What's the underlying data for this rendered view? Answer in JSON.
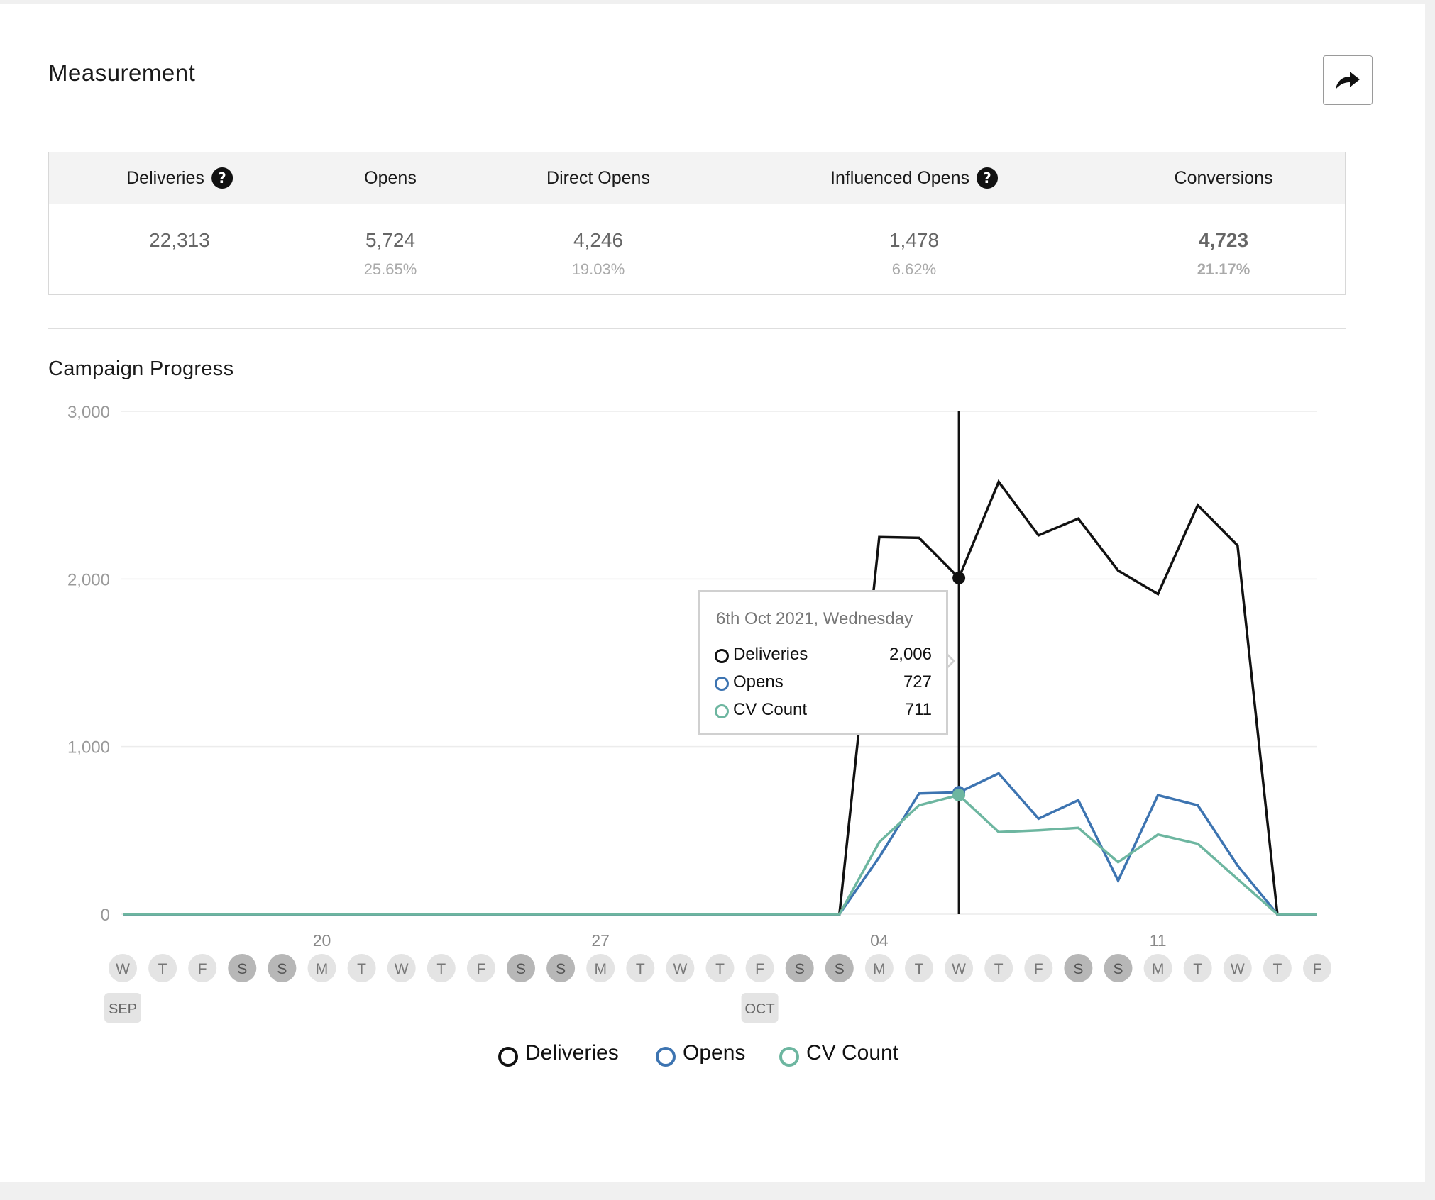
{
  "section_title": "Measurement",
  "share_icon": "share-arrow-icon",
  "metrics": [
    {
      "label": "Deliveries",
      "help": true,
      "value": "22,313",
      "percent": ""
    },
    {
      "label": "Opens",
      "help": false,
      "value": "5,724",
      "percent": "25.65%"
    },
    {
      "label": "Direct Opens",
      "help": false,
      "value": "4,246",
      "percent": "19.03%"
    },
    {
      "label": "Influenced Opens",
      "help": true,
      "value": "1,478",
      "percent": "6.62%"
    },
    {
      "label": "Conversions",
      "help": false,
      "value": "4,723",
      "percent": "21.17%",
      "bold": true
    }
  ],
  "help_glyph": "?",
  "chart_title": "Campaign Progress",
  "tooltip": {
    "date": "6th Oct 2021, Wednesday",
    "rows": [
      {
        "label": "Deliveries",
        "value": "2,006"
      },
      {
        "label": "Opens",
        "value": "727"
      },
      {
        "label": "CV Count",
        "value": "711"
      }
    ]
  },
  "legend": [
    "Deliveries",
    "Opens",
    "CV Count"
  ],
  "colors": {
    "deliveries": "#111111",
    "opens": "#3d74b1",
    "cv_count": "#6db6a0",
    "weekend_chip": "#b7b7b7",
    "weekday_chip": "#e4e4e4"
  },
  "chart_data": {
    "type": "line",
    "title": "Campaign Progress",
    "ylim": [
      0,
      3000
    ],
    "y_ticks": [
      "0",
      "1,000",
      "2,000",
      "3,000"
    ],
    "y_tick_values": [
      0,
      1000,
      2000,
      3000
    ],
    "week_labels": [
      {
        "day_index": 5,
        "label": "20"
      },
      {
        "day_index": 12,
        "label": "27"
      },
      {
        "day_index": 19,
        "label": "04"
      },
      {
        "day_index": 26,
        "label": "11"
      }
    ],
    "month_labels": [
      {
        "day_index": 0,
        "label": "SEP"
      },
      {
        "day_index": 16,
        "label": "OCT"
      }
    ],
    "day_letters": [
      "W",
      "T",
      "F",
      "S",
      "S",
      "M",
      "T",
      "W",
      "T",
      "F",
      "S",
      "S",
      "M",
      "T",
      "W",
      "T",
      "F",
      "S",
      "S",
      "M",
      "T",
      "W",
      "T",
      "F",
      "S",
      "S",
      "M",
      "T",
      "W",
      "T",
      "F"
    ],
    "weekend": [
      false,
      false,
      false,
      true,
      true,
      false,
      false,
      false,
      false,
      false,
      true,
      true,
      false,
      false,
      false,
      false,
      false,
      true,
      true,
      false,
      false,
      false,
      false,
      false,
      true,
      true,
      false,
      false,
      false,
      false,
      false
    ],
    "highlight_index": 21,
    "series": [
      {
        "name": "Deliveries",
        "color": "#111111",
        "values": [
          0,
          0,
          0,
          0,
          0,
          0,
          0,
          0,
          0,
          0,
          0,
          0,
          0,
          0,
          0,
          0,
          0,
          0,
          0,
          2250,
          2245,
          2006,
          2580,
          2260,
          2360,
          2050,
          1910,
          2440,
          2200,
          0,
          0
        ]
      },
      {
        "name": "Opens",
        "color": "#3d74b1",
        "values": [
          0,
          0,
          0,
          0,
          0,
          0,
          0,
          0,
          0,
          0,
          0,
          0,
          0,
          0,
          0,
          0,
          0,
          0,
          0,
          340,
          720,
          727,
          840,
          570,
          680,
          200,
          710,
          650,
          290,
          0,
          0
        ]
      },
      {
        "name": "CV Count",
        "color": "#6db6a0",
        "values": [
          0,
          0,
          0,
          0,
          0,
          0,
          0,
          0,
          0,
          0,
          0,
          0,
          0,
          0,
          0,
          0,
          0,
          0,
          0,
          430,
          650,
          711,
          490,
          500,
          515,
          310,
          475,
          420,
          210,
          0,
          0
        ]
      }
    ]
  }
}
